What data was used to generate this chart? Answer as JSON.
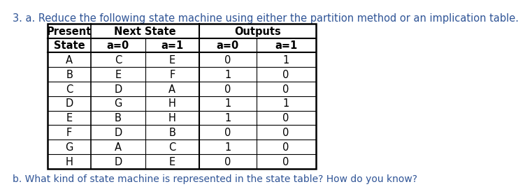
{
  "title": "3. a. Reduce the following state machine using either the partition method or an implication table.",
  "footer": "b. What kind of state machine is represented in the state table? How do you know?",
  "col_headers_row1": [
    "Present",
    "Next State",
    "",
    "Outputs",
    ""
  ],
  "col_headers_row2": [
    "State",
    "a=0",
    "a=1",
    "a=0",
    "a=1"
  ],
  "rows": [
    [
      "A",
      "C",
      "E",
      "0",
      "1"
    ],
    [
      "B",
      "E",
      "F",
      "1",
      "0"
    ],
    [
      "C",
      "D",
      "A",
      "0",
      "0"
    ],
    [
      "D",
      "G",
      "H",
      "1",
      "1"
    ],
    [
      "E",
      "B",
      "H",
      "1",
      "0"
    ],
    [
      "F",
      "D",
      "B",
      "0",
      "0"
    ],
    [
      "G",
      "A",
      "C",
      "1",
      "0"
    ],
    [
      "H",
      "D",
      "E",
      "0",
      "0"
    ]
  ],
  "title_color": "#2f5496",
  "footer_color": "#2f5496",
  "bg_color": "#ffffff",
  "table_line_color": "#000000",
  "text_color": "#000000",
  "title_fontsize": 10.5,
  "footer_fontsize": 10.0,
  "cell_fontsize": 10.5,
  "header_fontsize": 10.5
}
